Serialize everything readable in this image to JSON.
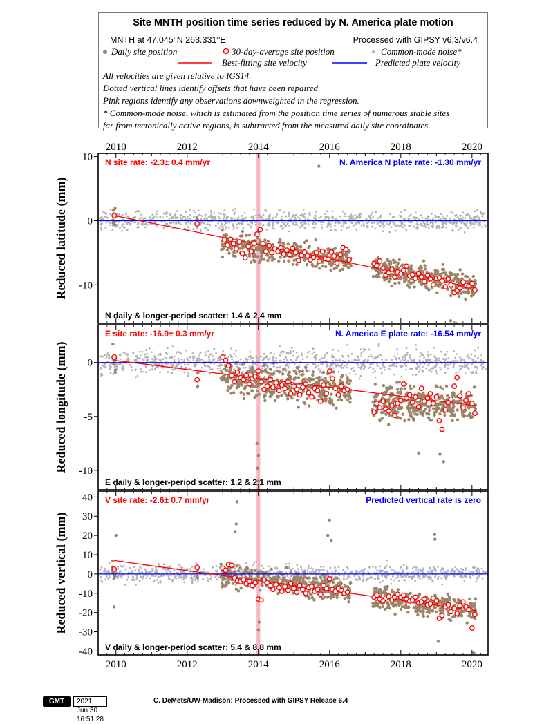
{
  "header": {
    "title": "Site MNTH position time series reduced by N. America plate motion",
    "location": "MNTH at 47.045°N 268.331°E",
    "processing": "Processed with GIPSY v6.3/v6.4",
    "legend_daily": "Daily site position",
    "legend_avg": "30-day-average site position",
    "legend_cm": "Common-mode noise*",
    "legend_fit": "Best-fitting site velocity",
    "legend_plate": "Predicted plate velocity",
    "notes": [
      "All velocities are given relative to IGS14.",
      "Dotted vertical lines identify offsets that have been repaired",
      "Pink regions identify any observations downweighted in the regression.",
      "* Common-mode noise, which is estimated from the position time series of numerous stable sites",
      "far from tectonically active regions, is subtracted from the measured daily site coordinates."
    ]
  },
  "colors": {
    "daily": "#9c8468",
    "common_mode": "#b2b2b2",
    "fit": "#ff0000",
    "plate": "#0000ff",
    "avg_edge": "#ff0000",
    "downweight": "#f7b7c4"
  },
  "footer": {
    "logo": "GMT",
    "timestamp": "2021 Jun 30 16:51:28",
    "credit": "C. DeMets/UW-Madison: Processed with GIPSY Release 6.4"
  },
  "chart_data": [
    {
      "type": "scatter",
      "component": "N",
      "ylabel": "Reduced latitude (mm)",
      "x_ticks": [
        "2010",
        "2012",
        "2014",
        "2016",
        "2018",
        "2020"
      ],
      "y_ticks": [
        10,
        0,
        -10
      ],
      "xlim": [
        2009.5,
        2020.45
      ],
      "ylim": [
        -16,
        10.5
      ],
      "site_rate_label": "N site rate:  -2.3± 0.4 mm/yr",
      "plate_rate_label": "N. America N plate rate: -1.30 mm/yr",
      "scatter_label": "N daily & longer-period scatter:   1.4 &   2.4 mm",
      "downweighted_interval": [
        2013.95,
        2014.05
      ],
      "fit_line": {
        "x": [
          2009.95,
          2020.1
        ],
        "y": [
          0.8,
          -10.5
        ]
      },
      "plate_line_y": 0,
      "segments": [
        {
          "start": 2009.9,
          "end": 2010.0,
          "y0": 0.7,
          "y1": 0.3,
          "n": 10
        },
        {
          "start": 2012.25,
          "end": 2012.3,
          "y0": -0.6,
          "y1": -0.6,
          "n": 3
        },
        {
          "start": 2012.95,
          "end": 2016.6,
          "y0": -3.5,
          "y1": -6.2,
          "n": 420
        },
        {
          "start": 2017.2,
          "end": 2020.1,
          "y0": -7.3,
          "y1": -10.3,
          "n": 380
        }
      ],
      "noise": 1.3,
      "outliers": [
        [
          2015.7,
          8.5
        ],
        [
          2019.55,
          -16.0
        ],
        [
          2019.4,
          -15.6
        ]
      ],
      "averages": {
        "x": [
          2009.95,
          2012.28,
          2013.05,
          2013.13,
          2013.21,
          2013.3,
          2013.38,
          2013.46,
          2013.55,
          2013.63,
          2013.71,
          2013.8,
          2013.88,
          2013.96,
          2014.05,
          2014.13,
          2014.21,
          2014.3,
          2014.38,
          2014.46,
          2014.55,
          2014.63,
          2014.71,
          2014.8,
          2014.88,
          2014.96,
          2015.05,
          2015.13,
          2015.21,
          2015.3,
          2015.38,
          2015.46,
          2015.55,
          2015.63,
          2015.71,
          2015.8,
          2015.88,
          2015.96,
          2016.05,
          2016.13,
          2016.21,
          2016.3,
          2016.38,
          2016.46,
          2016.55,
          2017.25,
          2017.33,
          2017.41,
          2017.5,
          2017.58,
          2017.66,
          2017.75,
          2017.83,
          2017.91,
          2018.0,
          2018.08,
          2018.16,
          2018.25,
          2018.33,
          2018.41,
          2018.5,
          2018.58,
          2018.66,
          2018.75,
          2018.83,
          2018.91,
          2019.0,
          2019.08,
          2019.16,
          2019.25,
          2019.33,
          2019.41,
          2019.5,
          2019.58,
          2019.66,
          2019.75,
          2019.83,
          2019.91,
          2020.0,
          2020.08
        ],
        "y": [
          0.8,
          -0.5,
          -3.0,
          -3.8,
          -2.9,
          -3.6,
          -4.4,
          -3.3,
          -5.1,
          -5.8,
          -4.0,
          -4.8,
          -3.5,
          -2.1,
          -1.4,
          -3.6,
          -4.8,
          -3.9,
          -5.0,
          -4.4,
          -4.8,
          -4.2,
          -5.2,
          -4.6,
          -5.3,
          -4.3,
          -4.9,
          -6.2,
          -5.4,
          -4.9,
          -5.5,
          -6.1,
          -5.7,
          -5.0,
          -6.3,
          -4.8,
          -5.9,
          -6.0,
          -4.9,
          -5.5,
          -6.6,
          -5.3,
          -4.2,
          -4.5,
          -6.1,
          -6.7,
          -7.0,
          -6.3,
          -7.4,
          -8.5,
          -8.1,
          -7.6,
          -8.8,
          -8.0,
          -8.3,
          -7.7,
          -7.1,
          -8.6,
          -8.4,
          -9.0,
          -8.2,
          -8.8,
          -9.5,
          -8.5,
          -9.1,
          -10.0,
          -9.0,
          -8.9,
          -9.4,
          -10.3,
          -9.1,
          -10.0,
          -11.2,
          -10.9,
          -10.5,
          -9.6,
          -10.1,
          -10.2,
          -9.8,
          -10.8
        ]
      }
    },
    {
      "type": "scatter",
      "component": "E",
      "ylabel": "Reduced longitude (mm)",
      "x_ticks": [
        "2010",
        "2012",
        "2014",
        "2016",
        "2018",
        "2020"
      ],
      "y_ticks": [
        0,
        -5,
        -10
      ],
      "xlim": [
        2009.5,
        2020.45
      ],
      "ylim": [
        -11.8,
        3.5
      ],
      "site_rate_label": "E site rate: -16.9± 0.3 mm/yr",
      "plate_rate_label": "N. America E plate rate: -16.54 mm/yr",
      "scatter_label": "E daily & longer-period scatter:   1.2 &   2.1 mm",
      "downweighted_interval": [
        2013.95,
        2014.05
      ],
      "fit_line": {
        "x": [
          2009.95,
          2020.1
        ],
        "y": [
          0.2,
          -4.0
        ]
      },
      "plate_line_y": 0,
      "segments": [
        {
          "start": 2009.9,
          "end": 2010.0,
          "y0": 0.6,
          "y1": 0.2,
          "n": 10
        },
        {
          "start": 2012.25,
          "end": 2012.3,
          "y0": -1.6,
          "y1": -1.6,
          "n": 3
        },
        {
          "start": 2012.95,
          "end": 2016.6,
          "y0": -1.4,
          "y1": -2.6,
          "n": 420
        },
        {
          "start": 2017.2,
          "end": 2020.1,
          "y0": -3.6,
          "y1": -4.0,
          "n": 380
        }
      ],
      "noise": 1.1,
      "outliers": [
        [
          2014.0,
          -11.0
        ],
        [
          2013.98,
          -9.8
        ],
        [
          2014.0,
          -8.6
        ],
        [
          2013.96,
          -7.5
        ],
        [
          2019.2,
          -9.2
        ],
        [
          2019.1,
          -8.5
        ],
        [
          2018.5,
          -8.4
        ]
      ],
      "averages": {
        "x": [
          2009.95,
          2012.28,
          2013.0,
          2013.08,
          2013.16,
          2013.25,
          2013.33,
          2013.41,
          2013.5,
          2013.58,
          2013.66,
          2013.75,
          2013.83,
          2013.91,
          2014.0,
          2014.08,
          2014.16,
          2014.25,
          2014.33,
          2014.41,
          2014.5,
          2014.58,
          2014.66,
          2014.75,
          2014.83,
          2014.91,
          2015.0,
          2015.08,
          2015.16,
          2015.25,
          2015.33,
          2015.41,
          2015.5,
          2015.58,
          2015.66,
          2015.75,
          2015.83,
          2015.91,
          2016.0,
          2016.08,
          2016.16,
          2016.25,
          2016.33,
          2016.41,
          2016.5,
          2017.25,
          2017.33,
          2017.41,
          2017.5,
          2017.58,
          2017.66,
          2017.75,
          2017.83,
          2017.91,
          2018.0,
          2018.08,
          2018.16,
          2018.25,
          2018.33,
          2018.41,
          2018.5,
          2018.58,
          2018.66,
          2018.75,
          2018.83,
          2018.91,
          2019.0,
          2019.08,
          2019.16,
          2019.25,
          2019.33,
          2019.41,
          2019.5,
          2019.58,
          2019.66,
          2019.75,
          2019.83,
          2019.91,
          2020.0,
          2020.08
        ],
        "y": [
          0.5,
          -1.6,
          0.5,
          0.2,
          -0.3,
          -1.2,
          -1.8,
          -0.9,
          -1.4,
          -1.6,
          -1.2,
          -2.0,
          -1.5,
          -1.3,
          -0.8,
          -1.8,
          -2.5,
          -2.2,
          -1.6,
          -2.3,
          -1.9,
          -2.6,
          -2.1,
          -2.4,
          -1.8,
          -2.9,
          -2.2,
          -2.5,
          -3.0,
          -2.3,
          -2.0,
          -2.8,
          -3.2,
          -2.4,
          -2.6,
          -3.6,
          -2.1,
          -2.9,
          -0.8,
          -1.5,
          -2.4,
          -3.0,
          -2.2,
          -2.6,
          -2.5,
          -4.6,
          -3.8,
          -4.2,
          -3.6,
          -4.3,
          -4.5,
          -4.0,
          -4.9,
          -3.8,
          -3.5,
          -2.0,
          -3.3,
          -3.0,
          -3.7,
          -3.2,
          -4.1,
          -2.4,
          -3.6,
          -3.3,
          -2.9,
          -3.8,
          -3.2,
          -5.4,
          -6.2,
          -4.4,
          -3.7,
          -3.4,
          -2.2,
          -1.4,
          -3.1,
          -4.2,
          -3.5,
          -2.9,
          -3.8,
          -4.7
        ]
      }
    },
    {
      "type": "scatter",
      "component": "V",
      "ylabel": "Reduced vertical (mm)",
      "x_ticks": [
        "2010",
        "2012",
        "2014",
        "2016",
        "2018",
        "2020"
      ],
      "y_ticks": [
        40,
        30,
        20,
        10,
        0,
        -10,
        -20,
        -30,
        -40
      ],
      "xlim": [
        2009.5,
        2020.45
      ],
      "ylim": [
        -42,
        43
      ],
      "site_rate_label": "V site rate:  -2.6± 0.7 mm/yr",
      "plate_rate_label": "Predicted vertical rate is zero",
      "scatter_label": "V daily & longer-period scatter:   5.4 &   8.8 mm",
      "downweighted_interval": [
        2013.95,
        2014.05
      ],
      "fit_line": {
        "x": [
          2009.95,
          2020.1
        ],
        "y": [
          7.0,
          -19.0
        ]
      },
      "plate_line_y": 0,
      "segments": [
        {
          "start": 2009.9,
          "end": 2010.0,
          "y0": 2.5,
          "y1": 1.0,
          "n": 10
        },
        {
          "start": 2012.25,
          "end": 2012.3,
          "y0": 3.5,
          "y1": 3.5,
          "n": 3
        },
        {
          "start": 2012.95,
          "end": 2016.6,
          "y0": 0.0,
          "y1": -9.0,
          "n": 420
        },
        {
          "start": 2017.2,
          "end": 2020.1,
          "y0": -12.0,
          "y1": -19.0,
          "n": 380
        }
      ],
      "noise": 4.2,
      "outliers": [
        [
          2013.4,
          37.5
        ],
        [
          2013.38,
          26.0
        ],
        [
          2013.35,
          22.0
        ],
        [
          2016.0,
          28.0
        ],
        [
          2015.95,
          20.0
        ],
        [
          2016.05,
          17.5
        ],
        [
          2018.95,
          20.5
        ],
        [
          2018.96,
          18.0
        ],
        [
          2014.0,
          -29.0
        ],
        [
          2014.02,
          -25.0
        ],
        [
          2019.05,
          -35.0
        ],
        [
          2020.05,
          -41.0
        ],
        [
          2010.0,
          20.0
        ],
        [
          2009.95,
          -17.0
        ]
      ],
      "averages": {
        "x": [
          2009.95,
          2012.28,
          2013.0,
          2013.08,
          2013.16,
          2013.25,
          2013.33,
          2013.41,
          2013.5,
          2013.58,
          2013.66,
          2013.75,
          2013.83,
          2013.91,
          2014.0,
          2014.08,
          2014.16,
          2014.25,
          2014.33,
          2014.41,
          2014.5,
          2014.58,
          2014.66,
          2014.75,
          2014.83,
          2014.91,
          2015.0,
          2015.08,
          2015.16,
          2015.25,
          2015.33,
          2015.41,
          2015.5,
          2015.58,
          2015.66,
          2015.75,
          2015.83,
          2015.91,
          2016.0,
          2016.08,
          2016.16,
          2016.25,
          2016.33,
          2016.41,
          2016.5,
          2017.25,
          2017.33,
          2017.41,
          2017.5,
          2017.58,
          2017.66,
          2017.75,
          2017.83,
          2017.91,
          2018.0,
          2018.08,
          2018.16,
          2018.25,
          2018.33,
          2018.41,
          2018.5,
          2018.58,
          2018.66,
          2018.75,
          2018.83,
          2018.91,
          2019.0,
          2019.08,
          2019.16,
          2019.25,
          2019.33,
          2019.41,
          2019.5,
          2019.58,
          2019.66,
          2019.75,
          2019.83,
          2019.91,
          2020.0,
          2020.08
        ],
        "y": [
          2.5,
          3.5,
          3.0,
          2.0,
          5.0,
          4.5,
          -2.0,
          -3.5,
          -4.0,
          -3.0,
          -5.0,
          -3.8,
          -6.0,
          -4.5,
          -13.0,
          -13.5,
          -3.0,
          -4.5,
          -6.0,
          -8.0,
          -5.5,
          -7.0,
          -9.0,
          -6.5,
          -8.5,
          -5.0,
          -7.5,
          -9.5,
          -6.0,
          -8.0,
          -10.0,
          -7.0,
          -6.5,
          -9.0,
          -8.0,
          -10.5,
          -6.0,
          -7.5,
          -2.5,
          -8.0,
          -9.0,
          -7.5,
          -8.5,
          -10.0,
          -9.5,
          -12.0,
          -11.0,
          -13.0,
          -14.0,
          -12.5,
          -11.5,
          -13.5,
          -12.0,
          -10.5,
          -12.0,
          -11.0,
          -13.0,
          -14.0,
          -13.5,
          -12.0,
          -15.0,
          -14.5,
          -13.0,
          -16.0,
          -15.5,
          -12.5,
          -14.0,
          -23.0,
          -21.5,
          -17.0,
          -16.0,
          -19.5,
          -18.0,
          -20.5,
          -16.5,
          -14.5,
          -17.0,
          -18.5,
          -28.0,
          -21.0
        ]
      }
    }
  ]
}
